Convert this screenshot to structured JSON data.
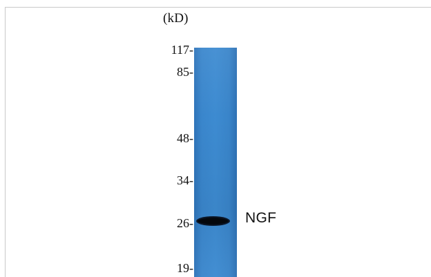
{
  "blot": {
    "unit_label": "(kD)",
    "markers": [
      {
        "label": "117-",
        "kd": 117
      },
      {
        "label": "85-",
        "kd": 85
      },
      {
        "label": "48-",
        "kd": 48
      },
      {
        "label": "34-",
        "kd": 34
      },
      {
        "label": "26-",
        "kd": 26
      },
      {
        "label": "19-",
        "kd": 19
      }
    ],
    "band": {
      "label": "NGF",
      "kd": 26,
      "color": "#000000"
    },
    "lane_color": "#3d8bd1"
  }
}
